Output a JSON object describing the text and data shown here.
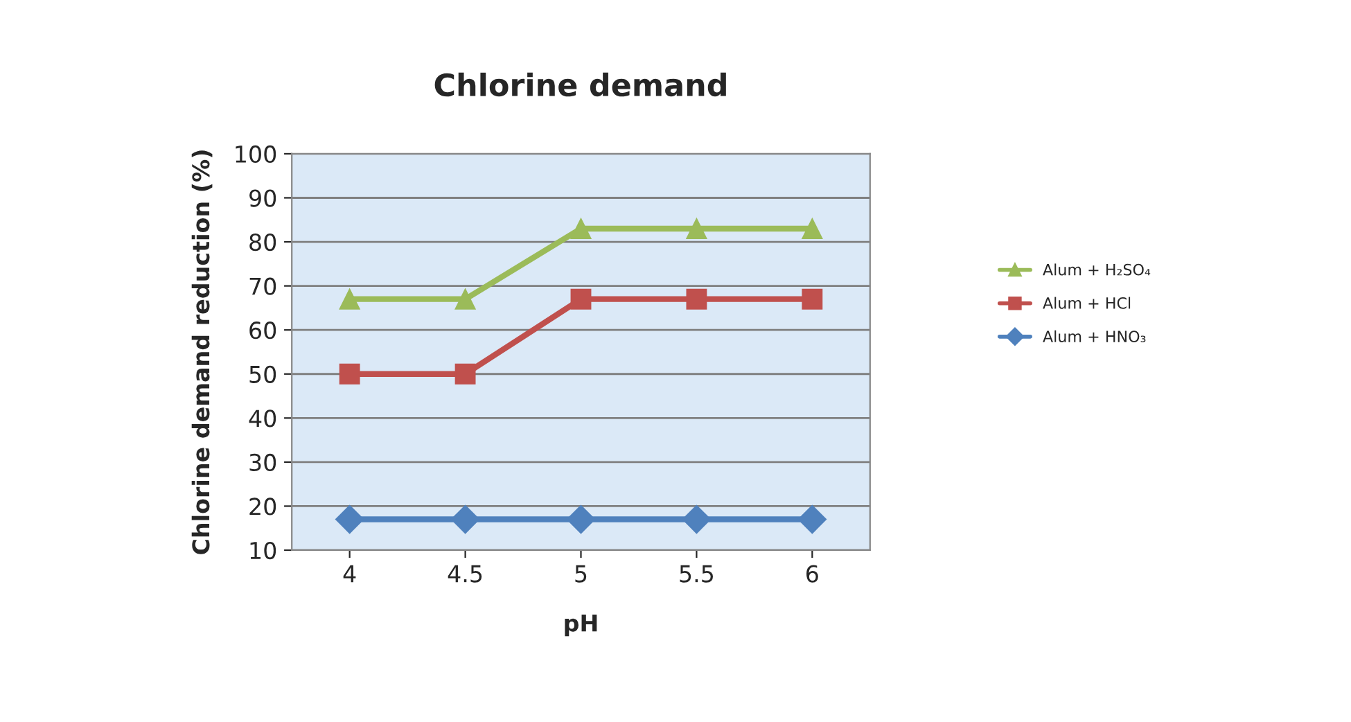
{
  "chart_data": {
    "type": "line",
    "title": "Chlorine demand",
    "xlabel": "pH",
    "ylabel": "Chlorine demand reduction (%)",
    "categories": [
      "4",
      "4.5",
      "5",
      "5.5",
      "6"
    ],
    "series": [
      {
        "name": "Alum + H₂SO₄",
        "color": "#9bbb59",
        "marker": "triangle",
        "values": [
          67,
          67,
          83,
          83,
          83
        ]
      },
      {
        "name": "Alum + HCl",
        "color": "#c0504d",
        "marker": "square",
        "values": [
          50,
          50,
          67,
          67,
          67
        ]
      },
      {
        "name": "Alum + HNO₃",
        "color": "#4f81bd",
        "marker": "diamond",
        "values": [
          17,
          17,
          17,
          17,
          17
        ]
      }
    ],
    "ylim": [
      10,
      100
    ],
    "yticks": [
      10,
      20,
      30,
      40,
      50,
      60,
      70,
      80,
      90,
      100
    ],
    "grid": "y",
    "legend": "right",
    "line_style": "solid"
  }
}
